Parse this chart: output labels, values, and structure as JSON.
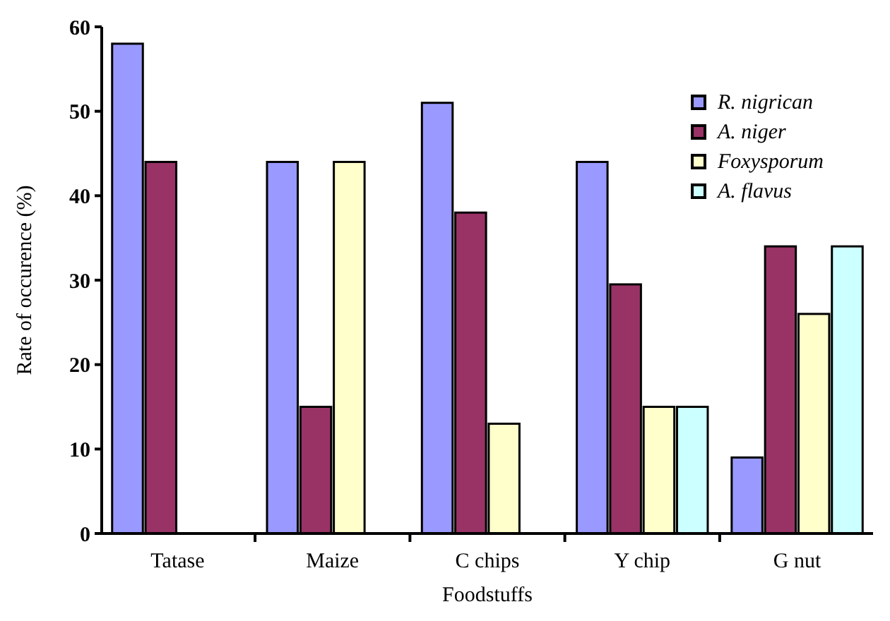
{
  "chart_data": {
    "type": "bar",
    "xlabel": "Foodstuffs",
    "ylabel": "Rate of occurence (%)",
    "categories": [
      "Tatase",
      "Maize",
      "C chips",
      "Y chip",
      "G nut"
    ],
    "series": [
      {
        "name": "R. nigrican",
        "color": "#9999ff",
        "values": [
          58,
          44,
          51,
          44,
          9
        ]
      },
      {
        "name": "A. niger",
        "color": "#993366",
        "values": [
          44,
          15,
          38,
          29.5,
          34
        ]
      },
      {
        "name": "Foxysporum",
        "color": "#ffffcc",
        "values": [
          0,
          44,
          13,
          15,
          26
        ]
      },
      {
        "name": "A. flavus",
        "color": "#ccffff",
        "values": [
          0,
          0,
          0,
          15,
          34
        ]
      }
    ],
    "ylim": [
      0,
      60
    ],
    "yticks": [
      0,
      10,
      20,
      30,
      40,
      50,
      60
    ],
    "grid": false,
    "legend": "top right"
  }
}
